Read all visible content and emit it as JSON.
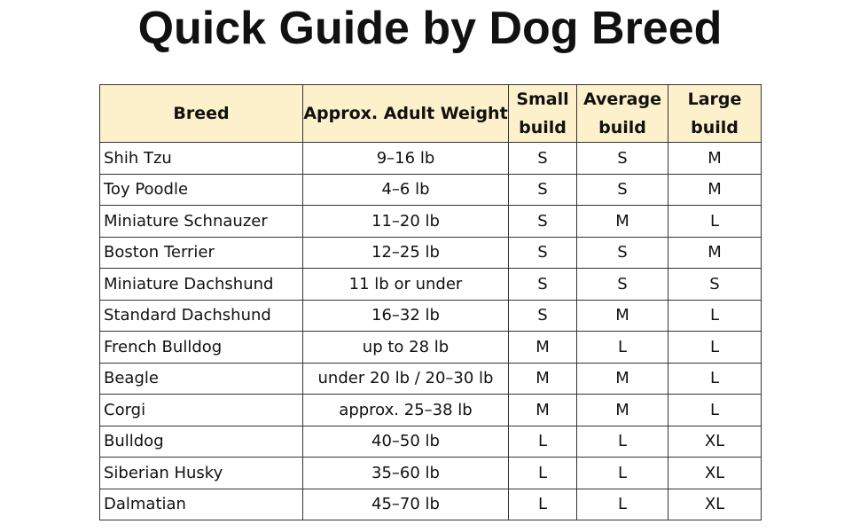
{
  "header": {
    "title": "Quick Guide by Dog Breed"
  },
  "table": {
    "columns": [
      "Breed",
      "Approx. Adult Weight",
      "Small build",
      "Average build",
      "Large build"
    ],
    "rows": [
      [
        "Shih Tzu",
        "9–16 lb",
        "S",
        "S",
        "M"
      ],
      [
        "Toy Poodle",
        "4–6 lb",
        "S",
        "S",
        "M"
      ],
      [
        "Miniature Schnauzer",
        "11–20 lb",
        "S",
        "M",
        "L"
      ],
      [
        "Boston Terrier",
        "12–25 lb",
        "S",
        "S",
        "M"
      ],
      [
        "Miniature Dachshund",
        "11 lb or under",
        "S",
        "S",
        "S"
      ],
      [
        "Standard Dachshund",
        "16–32 lb",
        "S",
        "M",
        "L"
      ],
      [
        "French Bulldog",
        "up to 28 lb",
        "M",
        "L",
        "L"
      ],
      [
        "Beagle",
        "under 20 lb / 20–30 lb",
        "M",
        "M",
        "L"
      ],
      [
        "Corgi",
        "approx. 25–38 lb",
        "M",
        "M",
        "L"
      ],
      [
        "Bulldog",
        "40–50 lb",
        "L",
        "L",
        "XL"
      ],
      [
        "Siberian Husky",
        "35–60 lb",
        "L",
        "L",
        "XL"
      ],
      [
        "Dalmatian",
        "45–70 lb",
        "L",
        "L",
        "XL"
      ]
    ]
  }
}
